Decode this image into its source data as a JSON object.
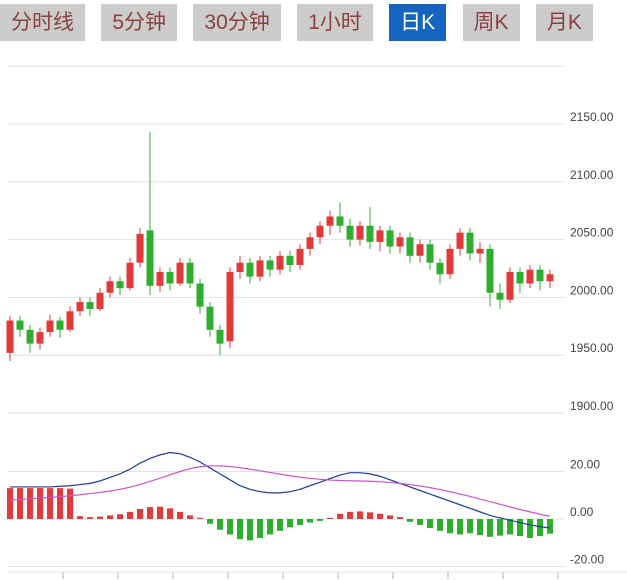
{
  "tabs": {
    "items": [
      {
        "label": "分时线",
        "selected": false
      },
      {
        "label": "5分钟",
        "selected": false
      },
      {
        "label": "30分钟",
        "selected": false
      },
      {
        "label": "1小时",
        "selected": false
      },
      {
        "label": "日K",
        "selected": true
      },
      {
        "label": "周K",
        "selected": false
      },
      {
        "label": "月K",
        "selected": false
      }
    ],
    "colors": {
      "bg": "#cccccc",
      "text": "#8c4040",
      "selected_bg": "#1565c0",
      "selected_text": "#ffffff"
    }
  },
  "chart_data": {
    "type": "candlestick",
    "legend_position": "none",
    "grid": true,
    "price_axis": {
      "ticks": [
        "2150.00",
        "2100.00",
        "2050.00",
        "2000.00",
        "1950.00",
        "1900.00"
      ],
      "values": [
        2150,
        2100,
        2050,
        2000,
        1950,
        1900
      ],
      "grid_top_value": 2200
    },
    "candles": [
      [
        1952,
        1984,
        1945,
        1980
      ],
      [
        1980,
        1984,
        1966,
        1972
      ],
      [
        1972,
        1976,
        1952,
        1960
      ],
      [
        1960,
        1974,
        1955,
        1970
      ],
      [
        1970,
        1985,
        1966,
        1980
      ],
      [
        1980,
        1983,
        1965,
        1972
      ],
      [
        1972,
        1992,
        1970,
        1988
      ],
      [
        1988,
        2000,
        1984,
        1996
      ],
      [
        1996,
        2000,
        1984,
        1990
      ],
      [
        1990,
        2008,
        1988,
        2004
      ],
      [
        2004,
        2018,
        2000,
        2014
      ],
      [
        2014,
        2018,
        2002,
        2008
      ],
      [
        2008,
        2034,
        2006,
        2030
      ],
      [
        2030,
        2060,
        2026,
        2055
      ],
      [
        2058,
        2143,
        2002,
        2010
      ],
      [
        2010,
        2026,
        2005,
        2022
      ],
      [
        2022,
        2026,
        2006,
        2012
      ],
      [
        2012,
        2034,
        2010,
        2030
      ],
      [
        2030,
        2034,
        2008,
        2012
      ],
      [
        2012,
        2016,
        1986,
        1992
      ],
      [
        1992,
        1996,
        1966,
        1972
      ],
      [
        1972,
        1976,
        1950,
        1960
      ],
      [
        1962,
        2026,
        1956,
        2022
      ],
      [
        2022,
        2036,
        2016,
        2030
      ],
      [
        2030,
        2034,
        2012,
        2018
      ],
      [
        2018,
        2036,
        2014,
        2032
      ],
      [
        2032,
        2036,
        2018,
        2024
      ],
      [
        2024,
        2040,
        2020,
        2036
      ],
      [
        2036,
        2040,
        2022,
        2028
      ],
      [
        2028,
        2046,
        2024,
        2042
      ],
      [
        2042,
        2056,
        2036,
        2052
      ],
      [
        2052,
        2066,
        2046,
        2062
      ],
      [
        2062,
        2075,
        2054,
        2070
      ],
      [
        2070,
        2082,
        2056,
        2062
      ],
      [
        2062,
        2068,
        2044,
        2050
      ],
      [
        2050,
        2066,
        2045,
        2062
      ],
      [
        2062,
        2078,
        2042,
        2048
      ],
      [
        2048,
        2062,
        2040,
        2058
      ],
      [
        2058,
        2062,
        2038,
        2044
      ],
      [
        2044,
        2056,
        2038,
        2052
      ],
      [
        2052,
        2056,
        2030,
        2036
      ],
      [
        2036,
        2050,
        2030,
        2046
      ],
      [
        2046,
        2050,
        2024,
        2030
      ],
      [
        2030,
        2034,
        2012,
        2020
      ],
      [
        2020,
        2046,
        2016,
        2042
      ],
      [
        2042,
        2060,
        2036,
        2056
      ],
      [
        2056,
        2060,
        2032,
        2038
      ],
      [
        2038,
        2048,
        2030,
        2042
      ],
      [
        2042,
        2046,
        1992,
        2004
      ],
      [
        2004,
        2012,
        1990,
        1998
      ],
      [
        1998,
        2026,
        1995,
        2022
      ],
      [
        2022,
        2026,
        2004,
        2012
      ],
      [
        2012,
        2028,
        2008,
        2024
      ],
      [
        2024,
        2028,
        2006,
        2014
      ],
      [
        2014,
        2024,
        2008,
        2020
      ]
    ],
    "indicator": {
      "type": "macd",
      "axis_ticks": [
        "20.00",
        "0.00",
        "-20.00"
      ],
      "axis_values": [
        20,
        0,
        -20
      ],
      "dif": [
        13.5,
        13.5,
        13.5,
        13.5,
        13.5,
        13.8,
        14,
        14.5,
        15,
        16,
        17.5,
        19,
        21,
        23.5,
        25.5,
        27,
        28,
        27.5,
        26,
        24,
        21.5,
        19,
        16.5,
        14,
        12.5,
        11.5,
        11,
        11,
        11.5,
        12.5,
        14,
        15.5,
        17,
        18.5,
        19.5,
        19.5,
        19,
        18,
        16.5,
        15,
        13.5,
        12,
        10.5,
        9,
        7.5,
        6,
        4.5,
        3,
        1.5,
        0.5,
        -0.5,
        -1.5,
        -2.5,
        -3.2,
        -3.8
      ],
      "dea": [
        8,
        8.2,
        8.5,
        8.8,
        9.1,
        9.4,
        9.8,
        10.2,
        10.7,
        11.2,
        11.8,
        12.5,
        13.4,
        14.5,
        15.8,
        17.2,
        18.6,
        20,
        21.2,
        22,
        22.4,
        22.4,
        22.1,
        21.6,
        21,
        20.3,
        19.6,
        18.9,
        18.2,
        17.6,
        17.1,
        16.7,
        16.4,
        16.2,
        16.1,
        16,
        15.9,
        15.7,
        15.4,
        15,
        14.5,
        13.9,
        13.2,
        12.4,
        11.5,
        10.5,
        9.5,
        8.4,
        7.3,
        6.2,
        5.1,
        4,
        3,
        2,
        1.1
      ],
      "hist": [
        13,
        13,
        13,
        13,
        13,
        13,
        12.8,
        1.2,
        0.8,
        1,
        1.5,
        2,
        3,
        4.2,
        5,
        5.2,
        4.5,
        3,
        1.5,
        0.5,
        -2,
        -4.5,
        -6.5,
        -8.5,
        -9,
        -8,
        -6.5,
        -5,
        -3.5,
        -2.5,
        -1.5,
        -0.8,
        0.5,
        2.2,
        3,
        3.2,
        2.8,
        2.2,
        1.5,
        0.8,
        -1.2,
        -2.5,
        -3.8,
        -5,
        -6,
        -6.5,
        -6,
        -6.8,
        -7.5,
        -7,
        -6.5,
        -7.2,
        -8,
        -7.2,
        -6.2
      ]
    },
    "colors": {
      "up": "#e03a3a",
      "down": "#2fad2f",
      "dif_line": "#1f3d9a",
      "dea_line": "#cc55cc",
      "grid": "#e2e2e2",
      "tick": "#b5b5b5",
      "axis_text": "#444444",
      "background": "#ffffff"
    }
  }
}
